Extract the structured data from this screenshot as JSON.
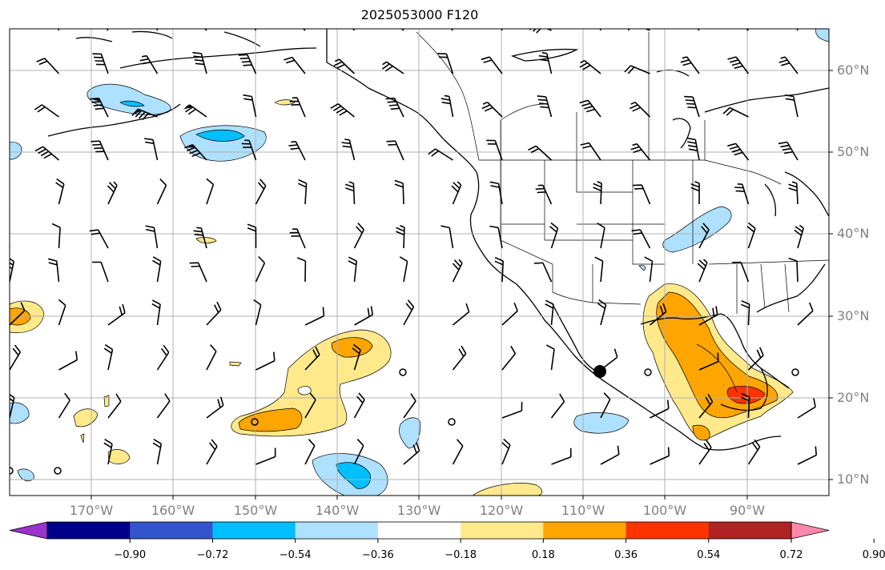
{
  "title": "2025053000 F120",
  "map": {
    "projection": "PlateCarree",
    "lon_range": [
      -180,
      -80
    ],
    "lat_range": [
      8,
      65
    ],
    "lon_ticks": [
      "170°W",
      "160°W",
      "150°W",
      "140°W",
      "130°W",
      "120°W",
      "110°W",
      "100°W",
      "90°W"
    ],
    "lat_ticks": [
      "10°N",
      "20°N",
      "30°N",
      "40°N",
      "50°N",
      "60°N"
    ],
    "marker": {
      "lon": -108,
      "lat": 23
    }
  },
  "colorbar": {
    "tick_labels": [
      "−0.90",
      "−0.72",
      "−0.54",
      "−0.36",
      "−0.18",
      "0.18",
      "0.36",
      "0.54",
      "0.72",
      "0.90"
    ],
    "colors": {
      "under": "#9933cc",
      "bins": [
        "#00008b",
        "#3355cc",
        "#00bfff",
        "#aee0ff",
        "#ffffff",
        "#ffe98a",
        "#ffa500",
        "#ff3300",
        "#b22222"
      ],
      "over": "#ff88aa"
    }
  }
}
